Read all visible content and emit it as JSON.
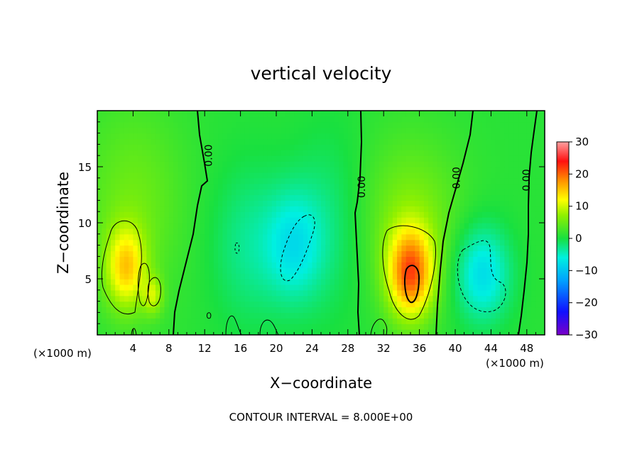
{
  "chart_data": {
    "type": "heatmap",
    "title": "vertical velocity",
    "xlabel": "X−coordinate",
    "ylabel": "Z−coordinate",
    "x_unit": "(×1000 m)",
    "y_unit": "(×1000 m)",
    "footer": "CONTOUR INTERVAL = 8.000E+00",
    "xlim": [
      0,
      50
    ],
    "ylim": [
      0,
      20
    ],
    "x_ticks": [
      4,
      8,
      12,
      16,
      20,
      24,
      28,
      32,
      36,
      40,
      44,
      48
    ],
    "y_ticks": [
      5,
      10,
      15
    ],
    "colorbar": {
      "range": [
        -30,
        30
      ],
      "ticks": [
        30,
        20,
        10,
        0,
        -10,
        -20,
        -30
      ],
      "tick_labels": [
        "30",
        "20",
        "10",
        "0",
        "−10",
        "−20",
        "−30"
      ]
    },
    "contour_labels": [
      {
        "text": "0.00",
        "x": 12.5,
        "z": 16.0
      },
      {
        "text": "0.00",
        "x": 29.6,
        "z": 13.2
      },
      {
        "text": "0.00",
        "x": 40.2,
        "z": 14.0
      },
      {
        "text": "0.00",
        "x": 48.0,
        "z": 13.8
      }
    ],
    "features": [
      {
        "kind": "updraft",
        "x": 3.2,
        "z": 6.0,
        "sx": 1.6,
        "sz": 2.6,
        "value": 12
      },
      {
        "kind": "updraft",
        "x": 6.2,
        "z": 3.5,
        "sx": 0.8,
        "sz": 1.2,
        "value": 7
      },
      {
        "kind": "updraft",
        "x": 35.0,
        "z": 5.5,
        "sx": 1.8,
        "sz": 2.8,
        "value": 18
      },
      {
        "kind": "updraft",
        "x": 35.0,
        "z": 10.5,
        "sx": 4.0,
        "sz": 5.0,
        "value": 5
      },
      {
        "kind": "updraft",
        "x": 4.0,
        "z": 12.0,
        "sx": 4.0,
        "sz": 6.0,
        "value": 4
      },
      {
        "kind": "downdraft",
        "x": 22.0,
        "z": 8.0,
        "sx": 2.2,
        "sz": 3.5,
        "value": -7
      },
      {
        "kind": "downdraft",
        "x": 43.0,
        "z": 5.5,
        "sx": 2.2,
        "sz": 3.0,
        "value": -9
      },
      {
        "kind": "downdraft",
        "x": 17.0,
        "z": 8.0,
        "sx": 3.0,
        "sz": 5.0,
        "value": -4
      },
      {
        "kind": "downdraft",
        "x": 26.0,
        "z": 10.0,
        "sx": 3.0,
        "sz": 6.0,
        "value": -3
      }
    ]
  }
}
